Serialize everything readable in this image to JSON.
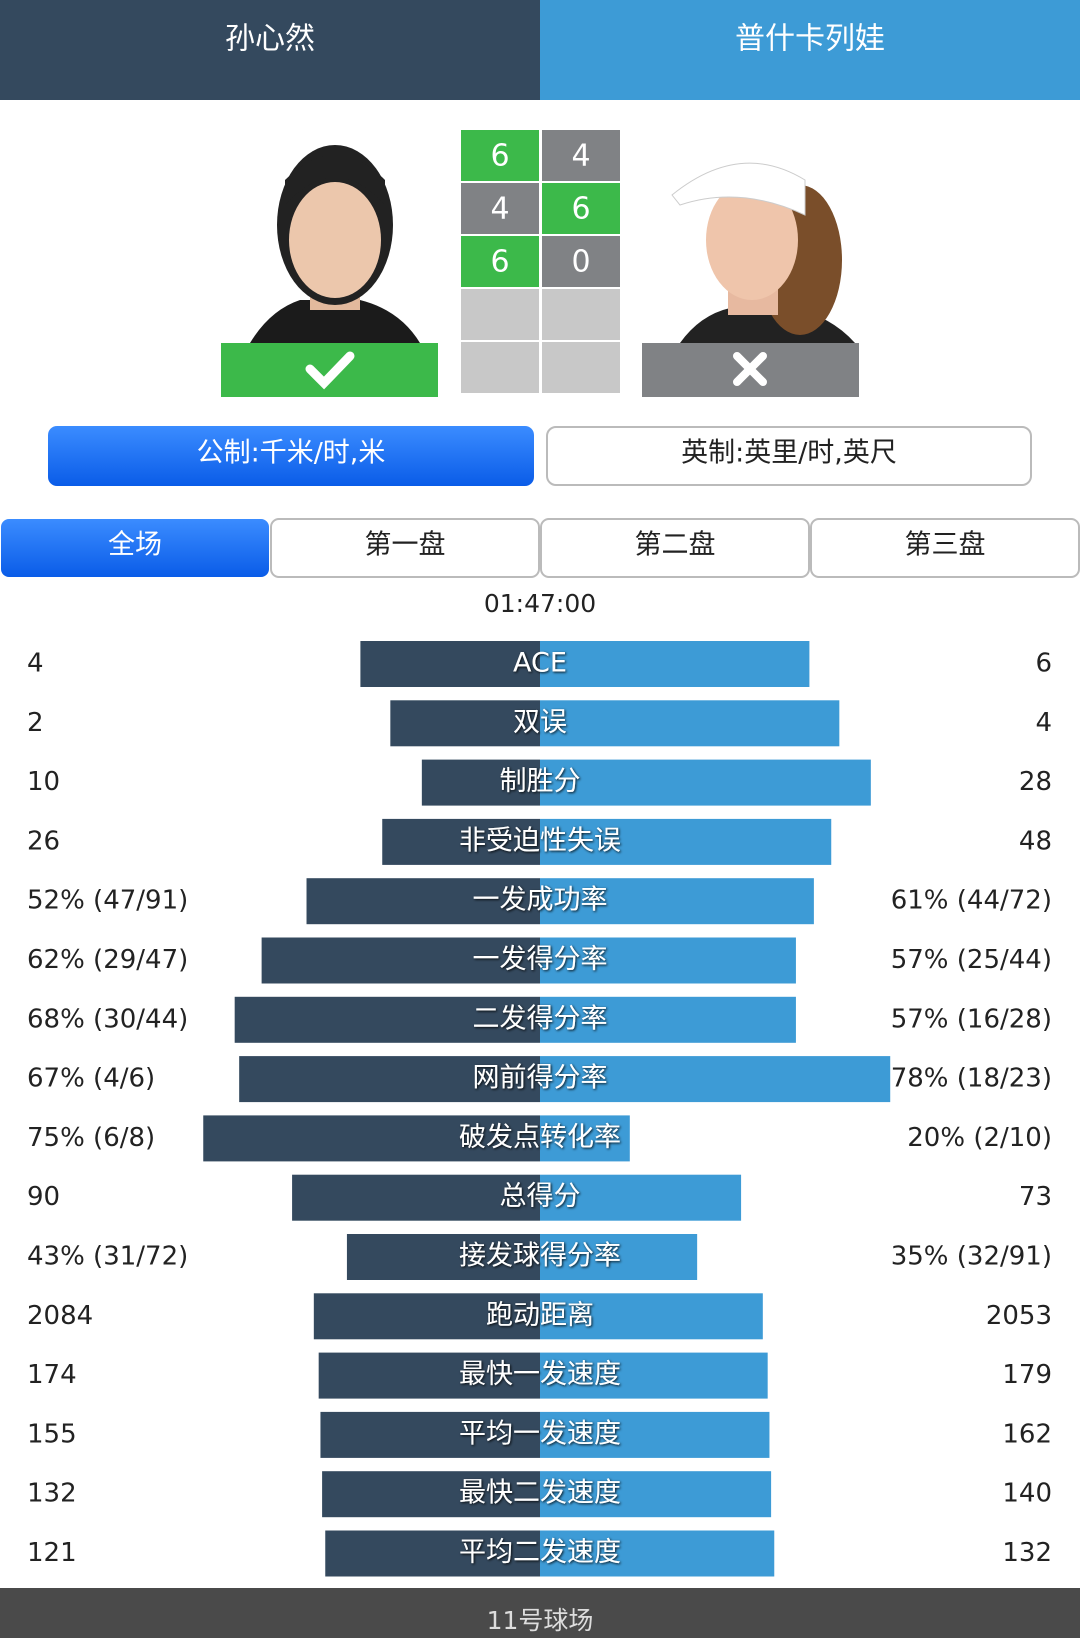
{
  "header": {
    "left_player": "孙心然",
    "right_player": "普什卡列娃"
  },
  "scores": {
    "left": [
      6,
      4,
      6
    ],
    "right": [
      4,
      6,
      0
    ]
  },
  "units": [
    "公制:千米/时,米",
    "英制:英里/时,英尺"
  ],
  "tabs": [
    "全场",
    "第一盘",
    "第二盘",
    "第三盘"
  ],
  "duration": "01:47:00",
  "stats": [
    {
      "label": "ACE",
      "left": 4,
      "right": 6
    },
    {
      "label": "双误",
      "left": 2,
      "right": 4
    },
    {
      "label": "制胜分",
      "left": 10,
      "right": 28
    },
    {
      "label": "非受迫性失误",
      "left": 26,
      "right": 48
    },
    {
      "label": "一发成功率",
      "left": {
        "value": 52,
        "label": "52% (47/91)"
      },
      "right": {
        "value": 61,
        "label": "61% (44/72)"
      }
    },
    {
      "label": "一发得分率",
      "left": {
        "value": 62,
        "label": "62% (29/47)"
      },
      "right": {
        "value": 57,
        "label": "57% (25/44)"
      }
    },
    {
      "label": "二发得分率",
      "left": {
        "value": 68,
        "label": "68% (30/44)"
      },
      "right": {
        "value": 57,
        "label": "57% (16/28)"
      }
    },
    {
      "label": "网前得分率",
      "left": {
        "value": 67,
        "label": "67% (4/6)"
      },
      "right": {
        "value": 78,
        "label": "78% (18/23)"
      }
    },
    {
      "label": "破发点转化率",
      "left": {
        "value": 75,
        "label": "75% (6/8)"
      },
      "right": {
        "value": 20,
        "label": "20% (2/10)"
      }
    },
    {
      "label": "总得分",
      "left": 90,
      "right": 73
    },
    {
      "label": "接发球得分率",
      "left": {
        "value": 43,
        "label": "43% (31/72)"
      },
      "right": {
        "value": 35,
        "label": "35% (32/91)"
      }
    },
    {
      "label": "跑动距离",
      "left": 2084,
      "right": 2053
    },
    {
      "label": "最快一发速度",
      "left": 174,
      "right": 179
    },
    {
      "label": "平均一发速度",
      "left": 155,
      "right": 162
    },
    {
      "label": "最快二发速度",
      "left": 132,
      "right": 140
    },
    {
      "label": "平均二发速度",
      "left": 121,
      "right": 132
    }
  ],
  "footer": "11号球场"
}
